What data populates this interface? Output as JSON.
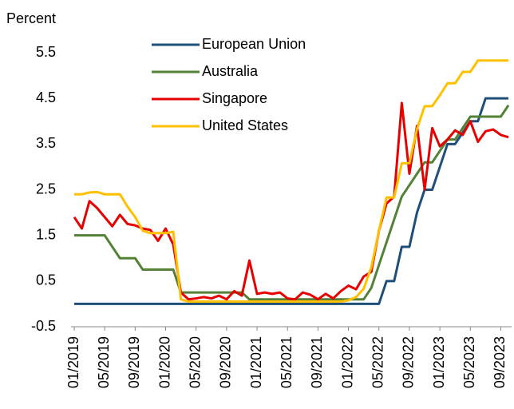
{
  "chart_data": {
    "type": "line",
    "y_label": "Percent",
    "categories": [
      "01/2019",
      null,
      null,
      null,
      "05/2019",
      null,
      null,
      null,
      "09/2019",
      null,
      null,
      null,
      "01/2020",
      null,
      null,
      null,
      "05/2020",
      null,
      null,
      null,
      "09/2020",
      null,
      null,
      null,
      "01/2021",
      null,
      null,
      null,
      "05/2021",
      null,
      null,
      null,
      "09/2021",
      null,
      null,
      null,
      "01/2022",
      null,
      null,
      null,
      "05/2022",
      null,
      null,
      null,
      "09/2022",
      null,
      null,
      null,
      "01/2023",
      null,
      null,
      null,
      "05/2023",
      null,
      null,
      null,
      "09/2023",
      null
    ],
    "series": [
      {
        "name": "European Union",
        "color": "#1f4e79",
        "values": [
          0,
          0,
          0,
          0,
          0,
          0,
          0,
          0,
          0,
          0,
          0,
          0,
          0,
          0,
          0,
          0,
          0,
          0,
          0,
          0,
          0,
          0,
          0,
          0,
          0,
          0,
          0,
          0,
          0,
          0,
          0,
          0,
          0,
          0,
          0,
          0,
          0,
          0,
          0,
          0,
          0,
          0.5,
          0.5,
          1.25,
          1.25,
          2.0,
          2.5,
          2.5,
          3.0,
          3.5,
          3.5,
          3.75,
          4.0,
          4.0,
          4.5,
          4.5,
          4.5,
          4.5
        ]
      },
      {
        "name": "Australia",
        "color": "#538135",
        "values": [
          1.5,
          1.5,
          1.5,
          1.5,
          1.5,
          1.25,
          1.0,
          1.0,
          1.0,
          0.75,
          0.75,
          0.75,
          0.75,
          0.75,
          0.25,
          0.25,
          0.25,
          0.25,
          0.25,
          0.25,
          0.25,
          0.25,
          0.25,
          0.1,
          0.1,
          0.1,
          0.1,
          0.1,
          0.1,
          0.1,
          0.1,
          0.1,
          0.1,
          0.1,
          0.1,
          0.1,
          0.1,
          0.1,
          0.1,
          0.35,
          0.85,
          1.35,
          1.85,
          2.35,
          2.6,
          2.85,
          3.1,
          3.1,
          3.35,
          3.6,
          3.6,
          3.85,
          4.1,
          4.1,
          4.1,
          4.1,
          4.1,
          4.35
        ]
      },
      {
        "name": "Singapore",
        "color": "#e60000",
        "values": [
          1.9,
          1.65,
          2.25,
          2.1,
          1.9,
          1.7,
          1.95,
          1.75,
          1.72,
          1.65,
          1.62,
          1.38,
          1.65,
          1.3,
          0.25,
          0.1,
          0.12,
          0.15,
          0.12,
          0.18,
          0.1,
          0.28,
          0.18,
          0.95,
          0.22,
          0.25,
          0.22,
          0.25,
          0.12,
          0.1,
          0.25,
          0.2,
          0.1,
          0.22,
          0.12,
          0.28,
          0.4,
          0.32,
          0.6,
          0.7,
          1.6,
          2.2,
          2.35,
          4.4,
          2.85,
          3.9,
          2.5,
          3.85,
          3.45,
          3.6,
          3.8,
          3.7,
          4.0,
          3.55,
          3.78,
          3.82,
          3.7,
          3.65
        ]
      },
      {
        "name": "United States",
        "color": "#ffc000",
        "values": [
          2.4,
          2.4,
          2.44,
          2.45,
          2.4,
          2.4,
          2.4,
          2.13,
          1.9,
          1.6,
          1.55,
          1.55,
          1.55,
          1.58,
          0.1,
          0.05,
          0.05,
          0.05,
          0.05,
          0.05,
          0.05,
          0.05,
          0.05,
          0.05,
          0.05,
          0.05,
          0.05,
          0.05,
          0.05,
          0.05,
          0.05,
          0.05,
          0.05,
          0.05,
          0.05,
          0.05,
          0.08,
          0.15,
          0.33,
          0.8,
          1.6,
          2.33,
          2.33,
          3.08,
          3.08,
          3.83,
          4.33,
          4.33,
          4.57,
          4.83,
          4.83,
          5.08,
          5.08,
          5.33,
          5.33,
          5.33,
          5.33,
          5.33
        ]
      }
    ],
    "ylim": [
      -0.5,
      5.5
    ],
    "yticks": [
      -0.5,
      0.5,
      1.5,
      2.5,
      3.5,
      4.5,
      5.5
    ],
    "grid": false
  }
}
